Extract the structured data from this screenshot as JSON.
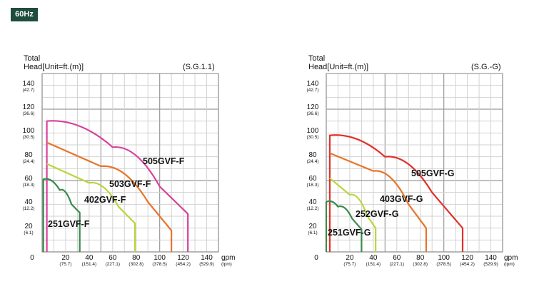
{
  "badge": "60Hz",
  "charts": [
    {
      "ylabel_line1": "Total",
      "ylabel_line2": "Head[Unit=ft.(m)]",
      "spec": "(S.G.1.1)",
      "xunit": "gpm",
      "xunit_sub": "(lpm)"
    },
    {
      "ylabel_line1": "Total",
      "ylabel_line2": "Head[Unit=ft.(m)]",
      "spec": "(S.G.-G)",
      "xunit": "gpm",
      "xunit_sub": "(lpm)"
    }
  ],
  "yticks": [
    {
      "v": "140",
      "m": "(42.7)"
    },
    {
      "v": "120",
      "m": "(36.6)"
    },
    {
      "v": "100",
      "m": "(30.5)"
    },
    {
      "v": "80",
      "m": "(24.4)"
    },
    {
      "v": "60",
      "m": "(18.3)"
    },
    {
      "v": "40",
      "m": "(12.2)"
    },
    {
      "v": "20",
      "m": "(6.1)"
    }
  ],
  "xzero": "0",
  "xticks": [
    {
      "v": "20",
      "l": "(75.7)"
    },
    {
      "v": "40",
      "l": "(151.4)"
    },
    {
      "v": "60",
      "l": "(227.1)"
    },
    {
      "v": "80",
      "l": "(302.8)"
    },
    {
      "v": "100",
      "l": "(378.5)"
    },
    {
      "v": "120",
      "l": "(454.2)"
    },
    {
      "v": "140",
      "l": "(529.9)"
    }
  ],
  "chart_data": [
    {
      "type": "line",
      "title": "(S.G.1.1)",
      "xlabel": "gpm (lpm)",
      "ylabel": "Total Head [Unit=ft.(m)]",
      "xlim": [
        0,
        150
      ],
      "ylim": [
        0,
        150
      ],
      "grid": true,
      "series": [
        {
          "name": "505GVF-F",
          "color": "#d6419b",
          "points": [
            [
              4,
              0
            ],
            [
              4,
              110
            ],
            [
              60,
              88
            ],
            [
              100,
              55
            ],
            [
              124,
              32
            ],
            [
              124,
              0
            ]
          ]
        },
        {
          "name": "503GVF-F",
          "color": "#e8742a",
          "points": [
            [
              4,
              92
            ],
            [
              50,
              72
            ],
            [
              90,
              42
            ],
            [
              110,
              18
            ],
            [
              110,
              0
            ]
          ]
        },
        {
          "name": "402GVF-F",
          "color": "#b9d53a",
          "points": [
            [
              4,
              74
            ],
            [
              40,
              58
            ],
            [
              65,
              38
            ],
            [
              79,
              24
            ],
            [
              79,
              0
            ]
          ]
        },
        {
          "name": "251GVF-F",
          "color": "#3a8a4e",
          "points": [
            [
              1,
              0
            ],
            [
              1,
              61
            ],
            [
              15,
              52
            ],
            [
              25,
              40
            ],
            [
              32,
              33
            ],
            [
              32,
              0
            ]
          ]
        }
      ]
    },
    {
      "type": "line",
      "title": "(S.G.-G)",
      "xlabel": "gpm (lpm)",
      "ylabel": "Total Head [Unit=ft.(m)]",
      "xlim": [
        0,
        150
      ],
      "ylim": [
        0,
        150
      ],
      "grid": true,
      "series": [
        {
          "name": "505GVF-G",
          "color": "#e0302a",
          "points": [
            [
              3,
              0
            ],
            [
              3,
              98
            ],
            [
              50,
              80
            ],
            [
              90,
              50
            ],
            [
              116,
              20
            ],
            [
              116,
              0
            ]
          ]
        },
        {
          "name": "403GVF-G",
          "color": "#e8742a",
          "points": [
            [
              3,
              83
            ],
            [
              40,
              68
            ],
            [
              70,
              40
            ],
            [
              85,
              20
            ],
            [
              85,
              0
            ]
          ]
        },
        {
          "name": "252GVF-G",
          "color": "#b9d53a",
          "points": [
            [
              3,
              62
            ],
            [
              20,
              48
            ],
            [
              35,
              30
            ],
            [
              42,
              20
            ],
            [
              42,
              0
            ]
          ]
        },
        {
          "name": "251GVF-G",
          "color": "#3a8a4e",
          "points": [
            [
              0,
              0
            ],
            [
              0,
              42
            ],
            [
              10,
              38
            ],
            [
              22,
              28
            ],
            [
              30,
              19
            ],
            [
              30,
              0
            ]
          ]
        }
      ]
    }
  ]
}
